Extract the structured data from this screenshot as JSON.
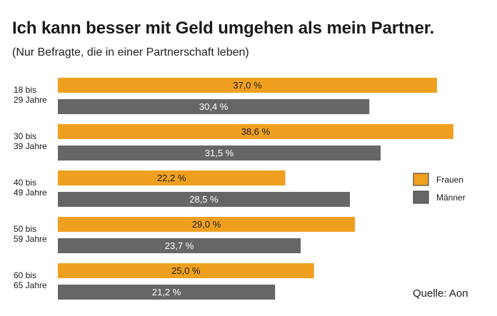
{
  "title": "Ich kann besser mit Geld umgehen als mein Partner.",
  "subtitle": "(Nur Befragte, die in einer Partnerschaft leben)",
  "source": "Quelle: Aon",
  "colors": {
    "frauen": "#f0a020",
    "maenner": "#666666"
  },
  "chart_data": {
    "type": "bar",
    "orientation": "horizontal",
    "categories": [
      [
        "18 bis",
        "29 Jahre"
      ],
      [
        "30 bis",
        "39 Jahre"
      ],
      [
        "40 bis",
        "49 Jahre"
      ],
      [
        "50 bis",
        "59 Jahre"
      ],
      [
        "60 bis",
        "65 Jahre"
      ]
    ],
    "series": [
      {
        "name": "Frauen",
        "values": [
          37.0,
          38.6,
          22.2,
          29.0,
          25.0
        ],
        "labels": [
          "37,0 %",
          "38,6 %",
          "22,2 %",
          "29,0 %",
          "25,0 %"
        ]
      },
      {
        "name": "Männer",
        "values": [
          30.4,
          31.5,
          28.5,
          23.7,
          21.2
        ],
        "labels": [
          "30,4 %",
          "31,5 %",
          "28,5 %",
          "23,7 %",
          "21,2 %"
        ]
      }
    ],
    "legend_position": "right",
    "grid": false
  }
}
